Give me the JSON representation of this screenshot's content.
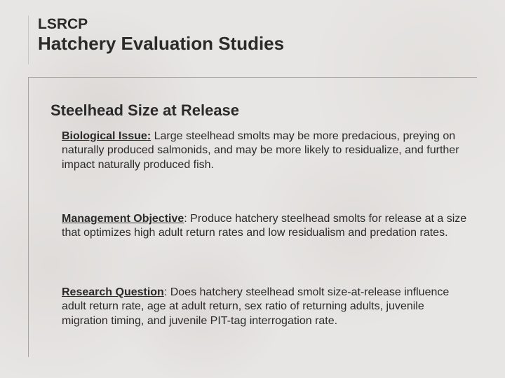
{
  "title": {
    "line1": "LSRCP",
    "line2": "Hatchery Evaluation Studies"
  },
  "subheading": "Steelhead Size at Release",
  "paragraphs": {
    "p1": {
      "lead": "Biological Issue:",
      "text": " Large steelhead smolts may be more predacious, preying on naturally produced salmonids, and may be more likely to residualize, and further impact naturally produced fish."
    },
    "p2": {
      "lead": "Management Objective",
      "colon": ": ",
      "text": "Produce hatchery steelhead smolts for release at a size that optimizes high adult return rates and low residualism and predation rates."
    },
    "p3": {
      "lead": "Research Question",
      "colon": ": ",
      "text": "Does hatchery steelhead smolt size-at-release influence adult return rate, age at adult return, sex ratio of returning adults, juvenile migration timing, and juvenile PIT-tag interrogation rate."
    }
  },
  "colors": {
    "background": "#e8e6e4",
    "text": "#2a2a2a",
    "rule": "#a8a49e"
  },
  "fonts": {
    "title_small_pt": 21,
    "title_big_pt": 26,
    "subheading_pt": 22,
    "body_pt": 16,
    "family": "Verdana"
  }
}
